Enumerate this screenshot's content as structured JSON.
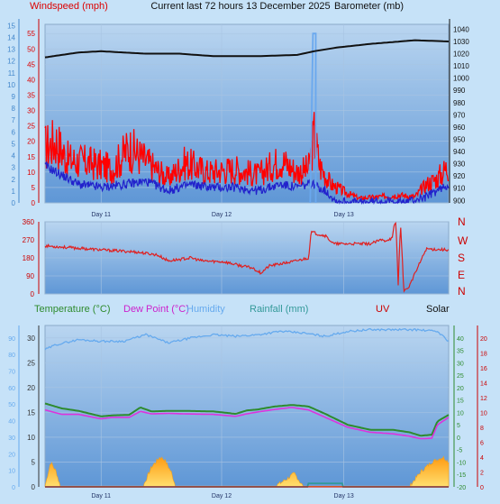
{
  "colors": {
    "windspeed": "#dd0000",
    "gust": "#ff0000",
    "wind_avg": "#2222cc",
    "barometer": "#111111",
    "direction": "#e02020",
    "temperature": "#2e8b2e",
    "dew_point": "#dd33dd",
    "humidity": "#66aaee",
    "rainfall": "#339999",
    "uv": "#cc0000",
    "solar": "#f0a020",
    "panel_top": "#b9d5f0",
    "panel_bottom": "#5f97d6"
  },
  "chart_data": [
    {
      "type": "line",
      "panel": "wind-barometer",
      "title": "Current last 72 hours 13 December 2025",
      "left_axis_label": "Windspeed (mph)",
      "right_axis_label": "Barometer (mb)",
      "x_labels": [
        "Day 11",
        "Day 12",
        "Day 13"
      ],
      "x_range_hours": [
        0,
        72
      ],
      "x_label_hours": [
        10,
        31.5,
        53.3
      ],
      "windspeed_ticks": [
        0,
        5,
        10,
        15,
        20,
        25,
        30,
        35,
        40,
        45,
        50,
        55
      ],
      "ylim_windspeed": [
        0,
        58
      ],
      "beaufort_ticks": [
        0,
        1,
        2,
        3,
        4,
        5,
        6,
        7,
        8,
        9,
        10,
        11,
        12,
        13,
        14,
        15
      ],
      "barometer_ticks": [
        900,
        910,
        920,
        930,
        940,
        950,
        960,
        970,
        980,
        990,
        1000,
        1010,
        1020,
        1030,
        1040
      ],
      "ylim_barometer": [
        898,
        1044
      ],
      "series": [
        {
          "name": "Barometer (mb)",
          "key": "barometer",
          "hours": [
            0,
            6,
            10,
            18,
            24,
            30,
            38,
            45,
            48,
            52,
            58,
            66,
            72
          ],
          "values": [
            1017,
            1021,
            1022,
            1020,
            1020,
            1018,
            1018,
            1019,
            1022,
            1025,
            1028,
            1031,
            1030
          ]
        },
        {
          "name": "Gust",
          "key": "gust",
          "hours": [
            0,
            2,
            4,
            8,
            12,
            15,
            19,
            22,
            25,
            29,
            34,
            38,
            42,
            45,
            47,
            48,
            49,
            51,
            54,
            56,
            60,
            63,
            66,
            68,
            70,
            72
          ],
          "values": [
            18,
            20,
            14,
            13,
            11,
            18,
            12,
            8,
            13,
            10,
            11,
            9,
            14,
            10,
            11,
            22,
            12,
            6,
            3,
            1.5,
            2,
            2.5,
            2,
            6,
            8,
            12
          ]
        },
        {
          "name": "Windspeed",
          "key": "wind_avg",
          "hours": [
            0,
            3,
            6,
            10,
            14,
            18,
            22,
            26,
            30,
            34,
            38,
            42,
            45,
            47,
            48,
            50,
            52,
            56,
            60,
            64,
            68,
            70,
            72
          ],
          "values": [
            12,
            9,
            6,
            5,
            6,
            7,
            4,
            6,
            5,
            5,
            4,
            6,
            5,
            6,
            6,
            4,
            0.5,
            0,
            0.5,
            0,
            2,
            4,
            6
          ]
        },
        {
          "name": "Spike",
          "key": "spike",
          "hours": [
            47.3,
            47.8,
            48.3
          ],
          "values": [
            0,
            55,
            55
          ]
        }
      ]
    },
    {
      "type": "line",
      "panel": "wind-direction",
      "direction_ticks": [
        0,
        90,
        180,
        270,
        360
      ],
      "ylim": [
        0,
        360
      ],
      "compass_labels": [
        "N",
        "W",
        "S",
        "E",
        "N"
      ],
      "series": [
        {
          "name": "Wind direction",
          "key": "direction",
          "hours": [
            0,
            5,
            10,
            16,
            20,
            22,
            26,
            28,
            32,
            35,
            37,
            38.5,
            40,
            44,
            47,
            47.5,
            48.5,
            50,
            51.5,
            58,
            60,
            60.5,
            62,
            62.2,
            62.6,
            63,
            63.4,
            64,
            64.4,
            65,
            68,
            72
          ],
          "values": [
            240,
            230,
            220,
            210,
            195,
            165,
            180,
            165,
            160,
            140,
            130,
            105,
            140,
            160,
            180,
            310,
            300,
            290,
            250,
            250,
            270,
            265,
            280,
            330,
            360,
            40,
            360,
            20,
            20,
            40,
            225,
            220
          ]
        }
      ]
    },
    {
      "type": "line",
      "panel": "temperature",
      "legend": [
        "Temperature (°C)",
        "Dew Point (°C)",
        "Humidity",
        "Rainfall (mm)",
        "UV",
        "Solar"
      ],
      "left_ticks": [
        0,
        5,
        10,
        15,
        20,
        25,
        30
      ],
      "humidity_ticks": [
        0,
        10,
        20,
        30,
        40,
        50,
        60,
        70,
        80,
        90
      ],
      "temperature_ticks": [
        -20,
        -15,
        -10,
        -5,
        0,
        5,
        10,
        15,
        20,
        25,
        30,
        35,
        40
      ],
      "uv_ticks": [
        0,
        2,
        4,
        6,
        8,
        10,
        12,
        14,
        16,
        18,
        20
      ],
      "ylim_left": [
        0,
        32.5
      ],
      "x_labels": [
        "Day 11",
        "Day 12",
        "Day 13"
      ],
      "x_label_hours": [
        10,
        31.5,
        53.3
      ],
      "series": [
        {
          "name": "Humidity",
          "key": "humidity",
          "hours": [
            0,
            2,
            6,
            10,
            14,
            18,
            22,
            26,
            30,
            34,
            38,
            42,
            46,
            50,
            54,
            58,
            62,
            66,
            70,
            72
          ],
          "values": [
            83,
            86,
            89,
            88,
            88,
            92,
            87,
            90,
            92,
            91,
            92,
            94,
            93,
            91,
            94,
            95,
            95,
            95,
            94,
            88
          ]
        },
        {
          "name": "Temperature (°C)",
          "key": "temperature",
          "hours": [
            0,
            3,
            6,
            10,
            12,
            15,
            17,
            19,
            22,
            25,
            30,
            34,
            36,
            38,
            41,
            44,
            47,
            50,
            54,
            58,
            62,
            65,
            67,
            69,
            70,
            72
          ],
          "values": [
            16.8,
            15.8,
            15.3,
            14.2,
            14.4,
            14.5,
            16,
            15.2,
            15.3,
            15.3,
            15.2,
            14.7,
            15.4,
            15.6,
            16.2,
            16.5,
            16.2,
            14.7,
            12.5,
            11.5,
            11.5,
            11,
            10.3,
            10.5,
            13.2,
            14.5
          ]
        },
        {
          "name": "Dew Point (°C)",
          "key": "dew_point",
          "hours": [
            0,
            3,
            6,
            10,
            12,
            15,
            17,
            19,
            22,
            25,
            30,
            34,
            36,
            38,
            41,
            44,
            47,
            50,
            54,
            58,
            62,
            65,
            67,
            69,
            70,
            72
          ],
          "values": [
            15.5,
            14.6,
            14.6,
            13.7,
            14,
            14,
            15.2,
            14.7,
            14.8,
            14.7,
            14.6,
            14.2,
            14.7,
            15.1,
            15.6,
            16,
            15.5,
            14,
            12,
            11,
            10.7,
            10.2,
            9.7,
            9.8,
            12.5,
            14
          ]
        },
        {
          "name": "Solar",
          "key": "solar",
          "hours": [
            0,
            1,
            2,
            2.7,
            17.5,
            19,
            20.5,
            21.3,
            22.5,
            23.3,
            41,
            43,
            44.5,
            46,
            65,
            67,
            69,
            71,
            72
          ],
          "values": [
            0.1,
            5,
            3,
            0.1,
            0.1,
            4,
            6,
            5.5,
            3,
            0.1,
            0.1,
            1.5,
            2.7,
            0.1,
            0.1,
            3,
            5,
            6,
            5
          ]
        },
        {
          "name": "Rainfall (mm)",
          "key": "rainfall",
          "hours": [
            0,
            46.8,
            47,
            53,
            53.2,
            72
          ],
          "values": [
            0,
            0,
            0.7,
            0.7,
            0,
            0
          ]
        },
        {
          "name": "UV",
          "key": "uv",
          "hours": [
            0,
            72
          ],
          "values": [
            0,
            0
          ]
        }
      ]
    }
  ]
}
